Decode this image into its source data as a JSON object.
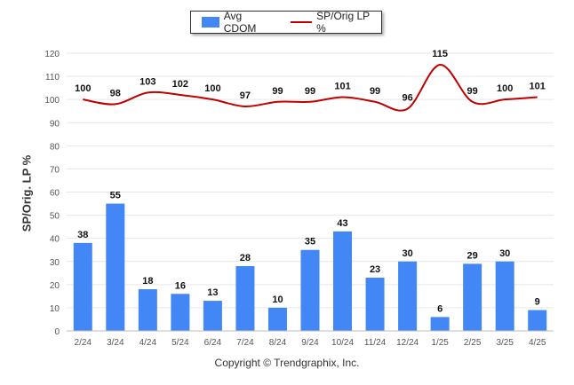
{
  "legend": {
    "bar_label": "Avg CDOM",
    "line_label": "SP/Orig LP %"
  },
  "ylabel": "SP/Orig. LP %",
  "copyright": "Copyright © Trendgraphix, Inc.",
  "colors": {
    "bar": "#4287f5",
    "line": "#c00000",
    "grid": "#e6e6e6",
    "axis": "#bbbbbb"
  },
  "chart_data": {
    "type": "bar",
    "categories": [
      "2/24",
      "3/24",
      "4/24",
      "5/24",
      "6/24",
      "7/24",
      "8/24",
      "9/24",
      "10/24",
      "11/24",
      "12/24",
      "1/25",
      "2/25",
      "3/25",
      "4/25"
    ],
    "series": [
      {
        "name": "Avg CDOM",
        "type": "bar",
        "values": [
          38,
          55,
          18,
          16,
          13,
          28,
          10,
          35,
          43,
          23,
          30,
          6,
          29,
          30,
          9
        ]
      },
      {
        "name": "SP/Orig LP %",
        "type": "line",
        "values": [
          100,
          98,
          103,
          102,
          100,
          97,
          99,
          99,
          101,
          99,
          96,
          115,
          99,
          100,
          101
        ]
      }
    ],
    "ylabel": "SP/Orig. LP %",
    "ylim": [
      0,
      120
    ],
    "yticks": [
      0,
      10,
      20,
      30,
      40,
      50,
      60,
      70,
      80,
      90,
      100,
      110,
      120
    ],
    "grid": true,
    "legend_position": "top-center"
  }
}
